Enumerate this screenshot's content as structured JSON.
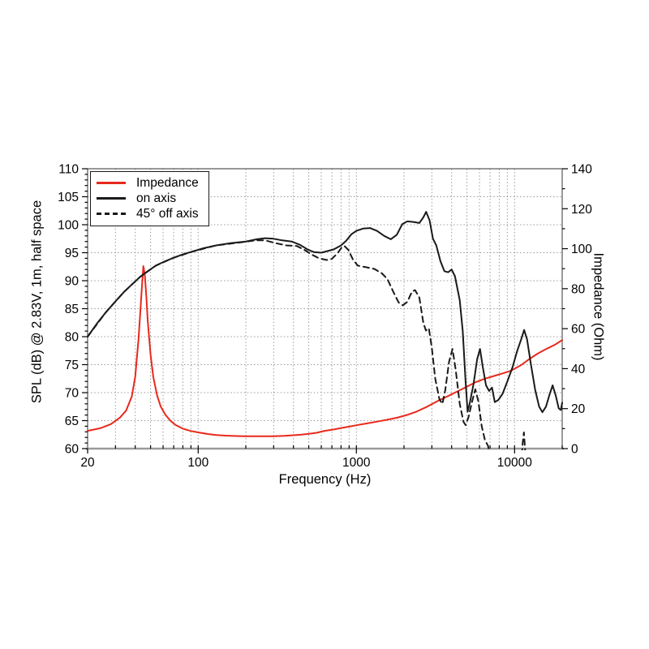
{
  "chart_data": {
    "type": "line",
    "title": "",
    "xlabel": "Frequency (Hz)",
    "ylabel_left": "SPL (dB) @ 2.83V, 1m, half space",
    "ylabel_right": "Impedance (Ohm)",
    "x_scale": "log",
    "xlim": [
      20,
      20000
    ],
    "ylim_left": [
      60,
      110
    ],
    "ylim_right": [
      0,
      140
    ],
    "x_ticks_labeled": [
      20,
      100,
      1000,
      10000
    ],
    "y_ticks_left": [
      60,
      65,
      70,
      75,
      80,
      85,
      90,
      95,
      100,
      105,
      110
    ],
    "y_ticks_right": [
      0,
      20,
      40,
      60,
      80,
      100,
      120,
      140
    ],
    "grid": "dotted",
    "grid_color": "#9a9a9a",
    "legend_position": "top-left",
    "series": [
      {
        "name": "Impedance",
        "axis": "right",
        "units": "Ohm",
        "color": "#e8291c",
        "style": "solid",
        "points": [
          [
            20,
            8.9
          ],
          [
            24,
            10.2
          ],
          [
            28,
            12.2
          ],
          [
            32,
            15.5
          ],
          [
            35,
            19
          ],
          [
            38,
            26
          ],
          [
            40,
            36
          ],
          [
            42,
            55
          ],
          [
            44,
            80
          ],
          [
            45,
            91.3
          ],
          [
            46,
            87
          ],
          [
            47,
            76
          ],
          [
            48,
            64
          ],
          [
            50,
            47
          ],
          [
            52,
            36
          ],
          [
            55,
            26.5
          ],
          [
            58,
            21
          ],
          [
            62,
            17
          ],
          [
            67,
            13.8
          ],
          [
            72,
            11.8
          ],
          [
            80,
            10
          ],
          [
            90,
            8.8
          ],
          [
            100,
            8.1
          ],
          [
            115,
            7.3
          ],
          [
            130,
            6.8
          ],
          [
            150,
            6.5
          ],
          [
            175,
            6.3
          ],
          [
            200,
            6.2
          ],
          [
            250,
            6.15
          ],
          [
            300,
            6.2
          ],
          [
            350,
            6.4
          ],
          [
            400,
            6.7
          ],
          [
            450,
            7.0
          ],
          [
            500,
            7.4
          ],
          [
            560,
            7.9
          ],
          [
            630,
            8.9
          ],
          [
            700,
            9.4
          ],
          [
            800,
            10.3
          ],
          [
            900,
            11
          ],
          [
            1000,
            11.7
          ],
          [
            1200,
            12.8
          ],
          [
            1400,
            13.7
          ],
          [
            1600,
            14.6
          ],
          [
            1800,
            15.4
          ],
          [
            2100,
            16.9
          ],
          [
            2400,
            18.5
          ],
          [
            2800,
            21
          ],
          [
            3300,
            24
          ],
          [
            3800,
            26.3
          ],
          [
            4400,
            28.8
          ],
          [
            5000,
            31
          ],
          [
            5700,
            33.3
          ],
          [
            6500,
            35
          ],
          [
            7400,
            36.3
          ],
          [
            8400,
            37.6
          ],
          [
            9500,
            39
          ],
          [
            11000,
            41.8
          ],
          [
            12500,
            45
          ],
          [
            14000,
            47.5
          ],
          [
            16000,
            50
          ],
          [
            18000,
            52
          ],
          [
            20000,
            54.3
          ]
        ]
      },
      {
        "name": "on axis",
        "axis": "left",
        "units": "dB",
        "color": "#1a1a1a",
        "style": "solid",
        "points": [
          [
            20,
            80
          ],
          [
            23,
            82.4
          ],
          [
            26,
            84.3
          ],
          [
            30,
            86.3
          ],
          [
            34,
            88
          ],
          [
            38,
            89.3
          ],
          [
            43,
            90.7
          ],
          [
            48,
            91.7
          ],
          [
            54,
            92.7
          ],
          [
            61,
            93.4
          ],
          [
            70,
            94.1
          ],
          [
            80,
            94.7
          ],
          [
            92,
            95.2
          ],
          [
            108,
            95.8
          ],
          [
            130,
            96.3
          ],
          [
            160,
            96.7
          ],
          [
            200,
            97.0
          ],
          [
            235,
            97.4
          ],
          [
            265,
            97.6
          ],
          [
            300,
            97.5
          ],
          [
            340,
            97.2
          ],
          [
            390,
            97.0
          ],
          [
            440,
            96.4
          ],
          [
            490,
            95.6
          ],
          [
            540,
            95.1
          ],
          [
            600,
            95.0
          ],
          [
            660,
            95.3
          ],
          [
            720,
            95.6
          ],
          [
            800,
            96.3
          ],
          [
            860,
            97.1
          ],
          [
            930,
            98.3
          ],
          [
            1000,
            98.9
          ],
          [
            1100,
            99.3
          ],
          [
            1220,
            99.4
          ],
          [
            1350,
            98.9
          ],
          [
            1500,
            98.0
          ],
          [
            1650,
            97.4
          ],
          [
            1800,
            98.2
          ],
          [
            1950,
            100.1
          ],
          [
            2100,
            100.6
          ],
          [
            2300,
            100.5
          ],
          [
            2500,
            100.3
          ],
          [
            2650,
            101.3
          ],
          [
            2760,
            102.3
          ],
          [
            2900,
            100.8
          ],
          [
            3050,
            97.5
          ],
          [
            3200,
            96.3
          ],
          [
            3400,
            93.5
          ],
          [
            3600,
            91.7
          ],
          [
            3800,
            91.5
          ],
          [
            4000,
            92.0
          ],
          [
            4200,
            90.8
          ],
          [
            4500,
            86.5
          ],
          [
            4700,
            81
          ],
          [
            4900,
            72
          ],
          [
            5050,
            66.6
          ],
          [
            5200,
            68
          ],
          [
            5500,
            71.5
          ],
          [
            5800,
            76
          ],
          [
            6050,
            77.8
          ],
          [
            6300,
            74.5
          ],
          [
            6600,
            71.3
          ],
          [
            6900,
            70.3
          ],
          [
            7200,
            70.9
          ],
          [
            7500,
            68.3
          ],
          [
            7900,
            68.7
          ],
          [
            8400,
            69.8
          ],
          [
            9000,
            72
          ],
          [
            9700,
            74.5
          ],
          [
            10400,
            77.5
          ],
          [
            11000,
            79.5
          ],
          [
            11500,
            81.2
          ],
          [
            12000,
            79.5
          ],
          [
            12700,
            75
          ],
          [
            13500,
            70.5
          ],
          [
            14300,
            67.5
          ],
          [
            15000,
            66.5
          ],
          [
            15800,
            67.5
          ],
          [
            16700,
            69.8
          ],
          [
            17400,
            71.3
          ],
          [
            18200,
            69.5
          ],
          [
            19000,
            67.2
          ],
          [
            19600,
            66.9
          ],
          [
            20000,
            68.2
          ]
        ]
      },
      {
        "name": "45° off axis",
        "axis": "left",
        "units": "dB",
        "color": "#1a1a1a",
        "style": "dashed",
        "points": [
          [
            20,
            80
          ],
          [
            26,
            84.3
          ],
          [
            34,
            88
          ],
          [
            43,
            90.7
          ],
          [
            54,
            92.7
          ],
          [
            70,
            94.1
          ],
          [
            92,
            95.2
          ],
          [
            130,
            96.3
          ],
          [
            180,
            96.8
          ],
          [
            230,
            97.2
          ],
          [
            265,
            97.2
          ],
          [
            310,
            96.7
          ],
          [
            360,
            96.3
          ],
          [
            420,
            96.2
          ],
          [
            470,
            95.5
          ],
          [
            520,
            94.7
          ],
          [
            580,
            94.0
          ],
          [
            650,
            93.7
          ],
          [
            700,
            93.9
          ],
          [
            760,
            94.9
          ],
          [
            810,
            96.0
          ],
          [
            840,
            96.2
          ],
          [
            890,
            95.5
          ],
          [
            950,
            93.8
          ],
          [
            1020,
            92.7
          ],
          [
            1150,
            92.4
          ],
          [
            1300,
            92.1
          ],
          [
            1450,
            91.3
          ],
          [
            1570,
            90.3
          ],
          [
            1700,
            88.2
          ],
          [
            1850,
            86.1
          ],
          [
            1960,
            85.6
          ],
          [
            2100,
            86.2
          ],
          [
            2250,
            88.1
          ],
          [
            2350,
            88.3
          ],
          [
            2500,
            87
          ],
          [
            2650,
            82.5
          ],
          [
            2750,
            81.1
          ],
          [
            2870,
            81.5
          ],
          [
            3000,
            78
          ],
          [
            3150,
            72.5
          ],
          [
            3350,
            68.8
          ],
          [
            3500,
            68.0
          ],
          [
            3650,
            70.5
          ],
          [
            3850,
            75.5
          ],
          [
            4050,
            77.8
          ],
          [
            4250,
            74
          ],
          [
            4500,
            68
          ],
          [
            4750,
            64.8
          ],
          [
            4900,
            64.2
          ],
          [
            5100,
            65.5
          ],
          [
            5400,
            68.5
          ],
          [
            5650,
            70.6
          ],
          [
            5900,
            68.5
          ],
          [
            6200,
            64
          ],
          [
            6500,
            61.5
          ],
          [
            6800,
            60.5
          ],
          [
            7000,
            58.5
          ],
          [
            7400,
            55
          ],
          [
            10600,
            54
          ],
          [
            11000,
            57
          ],
          [
            11250,
            61
          ],
          [
            11450,
            62.9
          ],
          [
            11650,
            60
          ],
          [
            11850,
            55
          ],
          [
            12100,
            52
          ]
        ]
      }
    ]
  }
}
